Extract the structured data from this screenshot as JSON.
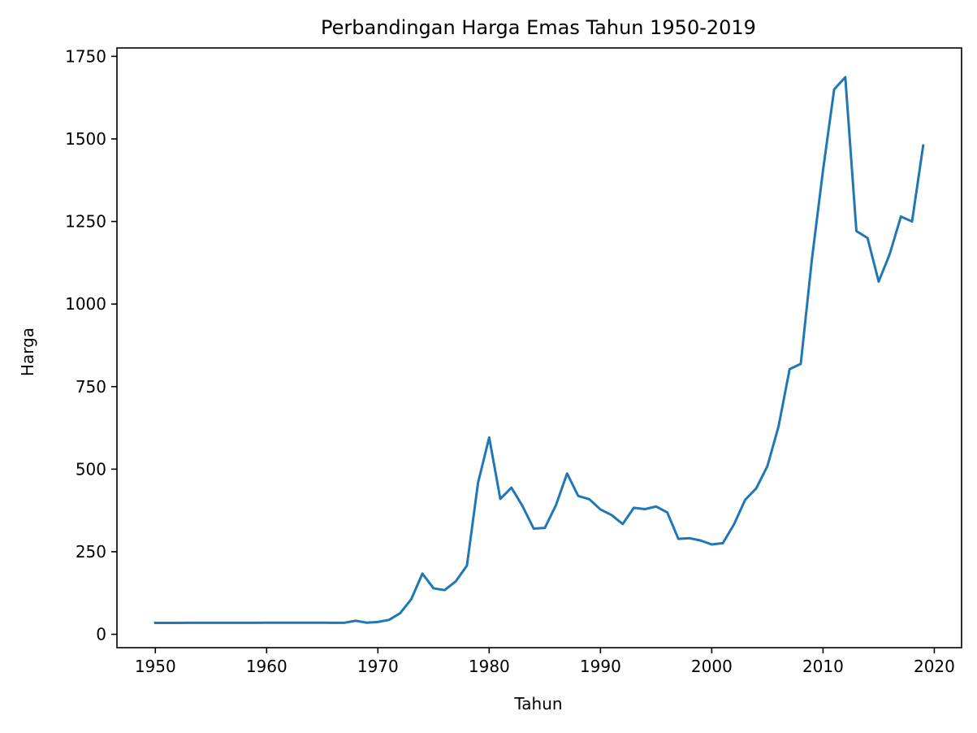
{
  "chart_data": {
    "type": "line",
    "title": "Perbandingan Harga Emas Tahun 1950-2019",
    "xlabel": "Tahun",
    "ylabel": "Harga",
    "xlim": [
      1946.55,
      2022.45
    ],
    "ylim": [
      -40.5,
      1775.5
    ],
    "xticks": [
      1950,
      1960,
      1970,
      1980,
      1990,
      2000,
      2010,
      2020
    ],
    "yticks": [
      0,
      250,
      500,
      750,
      1000,
      1250,
      1500,
      1750
    ],
    "grid": false,
    "legend": "none",
    "series": [
      {
        "color": "#1f77b4",
        "x": [
          1950,
          1951,
          1952,
          1953,
          1954,
          1955,
          1956,
          1957,
          1958,
          1959,
          1960,
          1961,
          1962,
          1963,
          1964,
          1965,
          1966,
          1967,
          1968,
          1969,
          1970,
          1971,
          1972,
          1973,
          1974,
          1975,
          1976,
          1977,
          1978,
          1979,
          1980,
          1981,
          1982,
          1983,
          1984,
          1985,
          1986,
          1987,
          1988,
          1989,
          1990,
          1991,
          1992,
          1993,
          1994,
          1995,
          1996,
          1997,
          1998,
          1999,
          2000,
          2001,
          2002,
          2003,
          2004,
          2005,
          2006,
          2007,
          2008,
          2009,
          2010,
          2011,
          2012,
          2013,
          2014,
          2015,
          2016,
          2017,
          2018,
          2019
        ],
        "values": [
          34.7,
          34.7,
          34.6,
          34.9,
          35.0,
          35.0,
          34.9,
          34.9,
          35.0,
          34.9,
          35.3,
          35.2,
          35.1,
          35.1,
          35.1,
          35.1,
          35.0,
          35.0,
          41.0,
          35.2,
          37.4,
          43.6,
          64.0,
          106.5,
          183.8,
          139.3,
          133.8,
          160.5,
          208.0,
          459.0,
          596.0,
          410.0,
          444.0,
          388.0,
          320.0,
          322.0,
          391.0,
          487.0,
          419.0,
          409.0,
          378.0,
          361.0,
          334.0,
          383.0,
          379.0,
          387.0,
          369.0,
          289.0,
          291.0,
          284.0,
          272.0,
          276.0,
          333.0,
          407.0,
          442.0,
          509.0,
          629.0,
          803.0,
          819.0,
          1135.0,
          1405.0,
          1650.0,
          1687.0,
          1221.0,
          1200.0,
          1068.0,
          1152.0,
          1265.0,
          1250.0,
          1480.0
        ]
      }
    ]
  }
}
